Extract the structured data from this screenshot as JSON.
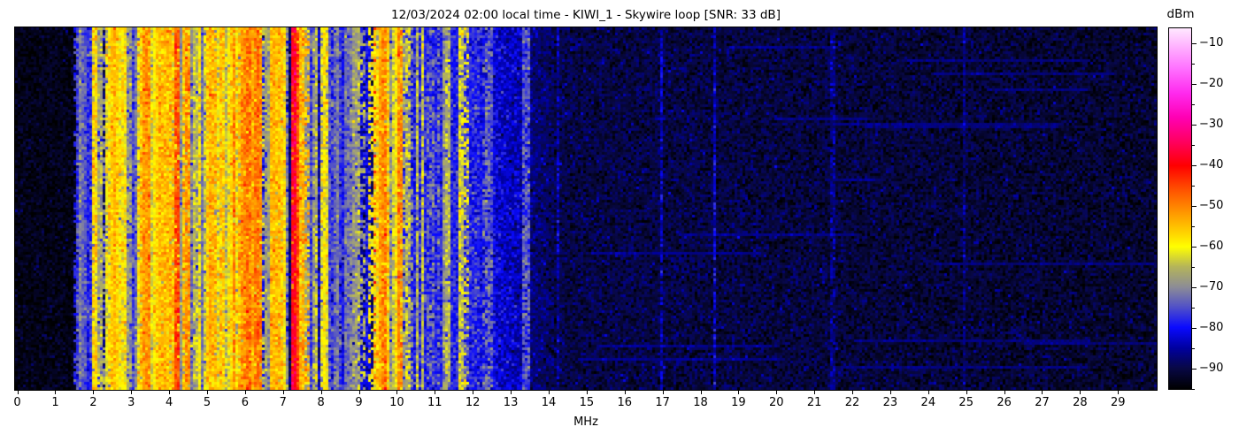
{
  "figure": {
    "background": "#ffffff"
  },
  "chart_data": {
    "type": "heatmap",
    "title": "12/03/2024 02:00 local time - KIWI_1 - Skywire loop [SNR: 33 dB]",
    "xlabel": "MHz",
    "x_range": [
      -0.06,
      30.02
    ],
    "x_ticks": [
      0,
      1,
      2,
      3,
      4,
      5,
      6,
      7,
      8,
      9,
      10,
      11,
      12,
      13,
      14,
      15,
      16,
      17,
      18,
      19,
      20,
      21,
      22,
      23,
      24,
      25,
      26,
      27,
      28,
      29
    ],
    "y_axis_ticks": [],
    "colorbar": {
      "label": "dBm",
      "vmax": -6,
      "vmin": -95.2,
      "major_ticks": [
        {
          "v": -10,
          "label": "−10"
        },
        {
          "v": -20,
          "label": "−20"
        },
        {
          "v": -30,
          "label": "−30"
        },
        {
          "v": -40,
          "label": "−40"
        },
        {
          "v": -50,
          "label": "−50"
        },
        {
          "v": -60,
          "label": "−60"
        },
        {
          "v": -70,
          "label": "−70"
        },
        {
          "v": -80,
          "label": "−80"
        },
        {
          "v": -90,
          "label": "−90"
        }
      ],
      "minor_ticks": [
        -15,
        -25,
        -35,
        -45,
        -55,
        -65,
        -75,
        -85,
        -95
      ],
      "stops": [
        [
          -6,
          "#ffe8ff"
        ],
        [
          -10,
          "#ffb8ff"
        ],
        [
          -16,
          "#ff70ff"
        ],
        [
          -22,
          "#ff2aee"
        ],
        [
          -28,
          "#ff00b4"
        ],
        [
          -34,
          "#ff0060"
        ],
        [
          -40,
          "#ff0000"
        ],
        [
          -46,
          "#ff5200"
        ],
        [
          -52,
          "#ff9c00"
        ],
        [
          -57,
          "#ffd800"
        ],
        [
          -60,
          "#ffff00"
        ],
        [
          -65,
          "#b4b45a"
        ],
        [
          -70,
          "#8c8c96"
        ],
        [
          -75,
          "#5050c8"
        ],
        [
          -80,
          "#0a0aff"
        ],
        [
          -85,
          "#0000a0"
        ],
        [
          -90,
          "#080846"
        ],
        [
          -95.2,
          "#000000"
        ]
      ]
    },
    "waterfall": {
      "seed": 20240312,
      "cols": 430,
      "rows": 137,
      "noise_bands": [
        {
          "f": [
            -0.06,
            1.55
          ],
          "floor": -93.5,
          "sigma": 1.7
        },
        {
          "f": [
            1.55,
            10.05
          ],
          "floor": -88.5,
          "sigma": 2.4
        },
        {
          "f": [
            10.05,
            12.15
          ],
          "floor": -78.5,
          "sigma": 3.0
        },
        {
          "f": [
            12.15,
            13.45
          ],
          "floor": -80.5,
          "fade_to": -85.0,
          "sigma": 2.8
        },
        {
          "f": [
            13.45,
            14.15
          ],
          "floor": -86.5,
          "fade_to": -89.5,
          "sigma": 2.5
        },
        {
          "f": [
            14.15,
            30.02
          ],
          "floor": -90.2,
          "fade_to": -91.8,
          "sigma": 2.3
        }
      ],
      "stripe_clusters": [
        {
          "range": [
            1.5,
            2.05
          ],
          "count": 12,
          "levels": [
            -85,
            -74
          ]
        },
        {
          "range": [
            2.05,
            2.95
          ],
          "count": 24,
          "levels": [
            -84,
            -55
          ]
        },
        {
          "range": [
            2.95,
            4.55
          ],
          "count": 44,
          "levels": [
            -83,
            -52
          ]
        },
        {
          "range": [
            4.55,
            5.55
          ],
          "count": 30,
          "levels": [
            -83,
            -54
          ]
        },
        {
          "range": [
            5.55,
            6.45
          ],
          "count": 26,
          "levels": [
            -81,
            -49
          ]
        },
        {
          "range": [
            6.45,
            7.15
          ],
          "count": 18,
          "levels": [
            -81,
            -55
          ]
        },
        {
          "range": [
            7.15,
            7.62
          ],
          "count": 12,
          "levels": [
            -73,
            -47
          ]
        },
        {
          "range": [
            7.62,
            8.52
          ],
          "count": 22,
          "levels": [
            -86,
            -60
          ]
        },
        {
          "range": [
            8.52,
            9.32
          ],
          "count": 14,
          "levels": [
            -85,
            -62
          ]
        },
        {
          "range": [
            9.32,
            10.02
          ],
          "count": 14,
          "levels": [
            -74,
            -52
          ]
        },
        {
          "range": [
            10.06,
            12.1
          ],
          "count": 12,
          "levels": [
            -74,
            -60
          ],
          "dash": 0.5
        },
        {
          "range": [
            12.1,
            13.4
          ],
          "count": 6,
          "levels": [
            -82,
            -72
          ],
          "dash": 0.4
        }
      ],
      "landmark_stripes": [
        {
          "f": 1.63,
          "w": 0.03,
          "level": -70
        },
        {
          "f": 2.0,
          "w": 0.04,
          "level": -57
        },
        {
          "f": 2.33,
          "w": 0.05,
          "level": -60
        },
        {
          "f": 2.5,
          "w": 0.1,
          "level": -58
        },
        {
          "f": 2.66,
          "w": 0.06,
          "level": -61
        },
        {
          "f": 3.2,
          "w": 0.06,
          "level": -59
        },
        {
          "f": 3.33,
          "w": 0.08,
          "level": -57
        },
        {
          "f": 3.62,
          "w": 0.05,
          "level": -60
        },
        {
          "f": 3.89,
          "w": 0.06,
          "level": -55
        },
        {
          "f": 4.18,
          "w": 0.07,
          "level": -46
        },
        {
          "f": 4.47,
          "w": 0.05,
          "level": -51
        },
        {
          "f": 4.77,
          "w": 0.05,
          "level": -59
        },
        {
          "f": 5.0,
          "w": 0.09,
          "level": -57
        },
        {
          "f": 5.36,
          "w": 0.07,
          "level": -56
        },
        {
          "f": 5.62,
          "w": 0.04,
          "level": -60
        },
        {
          "f": 5.91,
          "w": 0.06,
          "level": -52
        },
        {
          "f": 6.07,
          "w": 0.1,
          "level": -49
        },
        {
          "f": 6.18,
          "w": 0.05,
          "level": -54
        },
        {
          "f": 6.65,
          "w": 0.05,
          "level": -58
        },
        {
          "f": 6.8,
          "w": 0.07,
          "level": -56
        },
        {
          "f": 7.0,
          "w": 0.04,
          "level": -59
        },
        {
          "f": 7.23,
          "w": 0.08,
          "level": -38
        },
        {
          "f": 7.32,
          "w": 0.05,
          "level": -45
        },
        {
          "f": 7.44,
          "w": 0.05,
          "level": -54
        },
        {
          "f": 7.85,
          "w": 0.04,
          "level": -63,
          "dash": 0.55
        },
        {
          "f": 8.1,
          "w": 0.04,
          "level": -64,
          "dash": 0.5
        },
        {
          "f": 8.97,
          "w": 0.04,
          "level": -64,
          "dash": 0.5
        },
        {
          "f": 9.28,
          "w": 0.04,
          "level": -60,
          "dash": 0.55
        },
        {
          "f": 9.52,
          "w": 0.06,
          "level": -55
        },
        {
          "f": 9.63,
          "w": 0.09,
          "level": -50
        },
        {
          "f": 9.74,
          "w": 0.05,
          "level": -56
        },
        {
          "f": 10.05,
          "w": 0.04,
          "level": -51
        },
        {
          "f": 10.25,
          "w": 0.03,
          "level": -63,
          "dash": 0.5
        },
        {
          "f": 11.63,
          "w": 0.04,
          "level": -60,
          "dash": 0.55
        },
        {
          "f": 11.81,
          "w": 0.04,
          "level": -62,
          "dash": 0.45
        },
        {
          "f": 12.31,
          "w": 0.03,
          "level": -77,
          "dash": 0.35
        },
        {
          "f": 14.21,
          "w": 0.03,
          "level": -84.5
        },
        {
          "f": 16.95,
          "w": 0.03,
          "level": -83.5
        },
        {
          "f": 18.35,
          "w": 0.03,
          "level": -82.5
        },
        {
          "f": 21.45,
          "w": 0.03,
          "level": -86.5
        },
        {
          "f": 24.9,
          "w": 0.03,
          "level": -87.5
        }
      ],
      "periodic_stripes": [
        {
          "f": 9.4,
          "period": 6,
          "on_level": -44,
          "off_level": -76
        }
      ],
      "bursts": {
        "count": 16,
        "f_start": [
          12.3,
          27.0
        ],
        "length": [
          1.2,
          6.5
        ],
        "lift": 4.5
      },
      "streak_rows": [
        {
          "row": 10,
          "f": [
            1.85,
            8.5
          ],
          "level": -71
        }
      ]
    }
  }
}
